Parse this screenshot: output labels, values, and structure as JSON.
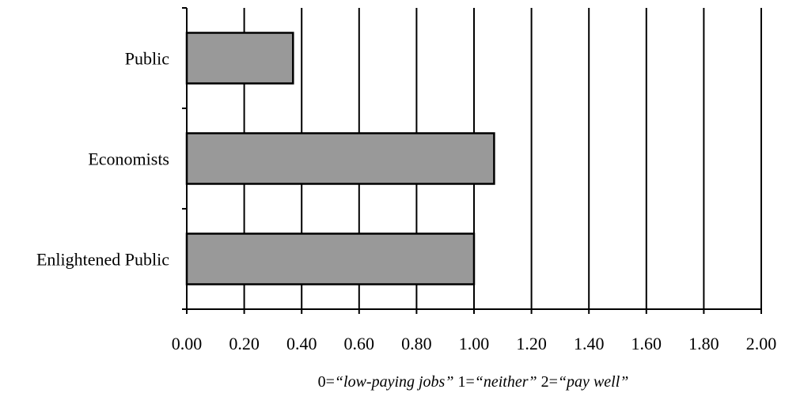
{
  "chart_data": {
    "type": "bar",
    "orientation": "horizontal",
    "categories": [
      "Public",
      "Economists",
      "Enlightened Public"
    ],
    "values": [
      0.37,
      1.07,
      1.0
    ],
    "xlim": [
      0,
      2.0
    ],
    "x_ticks": [
      "0.00",
      "0.20",
      "0.40",
      "0.60",
      "0.80",
      "1.00",
      "1.20",
      "1.40",
      "1.60",
      "1.80",
      "2.00"
    ],
    "xlabel": {
      "segments": [
        {
          "text": "0=",
          "italic": false
        },
        {
          "text": "“low-paying jobs”",
          "italic": true
        },
        {
          "text": " 1=",
          "italic": false
        },
        {
          "text": "“neither”",
          "italic": true
        },
        {
          "text": " 2=",
          "italic": false
        },
        {
          "text": "“pay well”",
          "italic": true
        }
      ]
    },
    "title": "",
    "grid": "vertical",
    "legend": "none",
    "colors": {
      "bar_fill": "#999999",
      "bar_stroke": "#000000",
      "grid": "#000000"
    }
  }
}
